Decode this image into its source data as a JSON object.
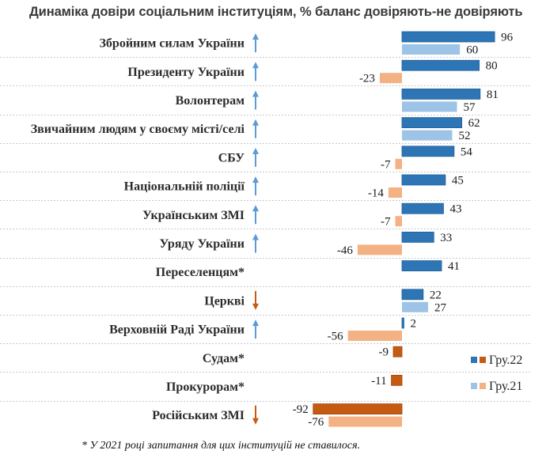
{
  "chart_data": {
    "type": "bar",
    "orientation": "horizontal",
    "title": "Динаміка довіри соціальним інституціям, % баланс довіряють-не довіряють",
    "xlabel": "",
    "ylabel": "",
    "xlim": [
      -95,
      100
    ],
    "grid": false,
    "legend_position": "bottom-right",
    "categories": [
      "Збройним силам України",
      "Президенту України",
      "Волонтерам",
      "Звичайним людям у своєму місті/селі",
      "СБУ",
      "Національній поліції",
      "Українським ЗМІ",
      "Уряду України",
      "Переселенцям*",
      "Церкві",
      "Верховній Раді України",
      "Судам*",
      "Прокурорам*",
      "Російським ЗМІ"
    ],
    "trend": [
      "up",
      "up",
      "up",
      "up",
      "up",
      "up",
      "up",
      "up",
      "none",
      "down",
      "up",
      "none",
      "none",
      "down"
    ],
    "series": [
      {
        "name": "Гру.22",
        "values": [
          96,
          80,
          81,
          62,
          54,
          45,
          43,
          33,
          41,
          22,
          2,
          -9,
          -11,
          -92
        ],
        "color_positive": "#2E75B6",
        "color_negative": "#C55A11"
      },
      {
        "name": "Гру.21",
        "values": [
          60,
          -23,
          57,
          52,
          -7,
          -14,
          -7,
          -46,
          null,
          27,
          -56,
          null,
          null,
          -76
        ],
        "color_positive": "#9DC3E6",
        "color_negative": "#F4B183"
      }
    ],
    "arrow_colors": {
      "up": "#5B9BD5",
      "down": "#C55A11"
    },
    "footnote": "* У 2021 році запитання для цих інституцій не ставилося."
  }
}
